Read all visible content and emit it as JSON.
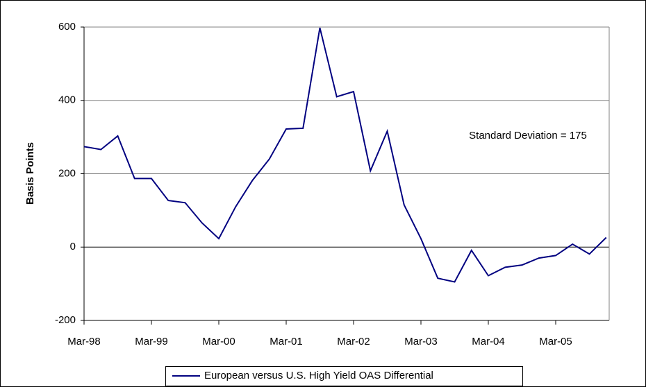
{
  "chart_data": {
    "type": "line",
    "y_label": "Basis Points",
    "annotation": "Standard Deviation = 175",
    "categories": [
      "Mar-98",
      null,
      null,
      null,
      "Mar-99",
      null,
      null,
      null,
      "Mar-00",
      null,
      null,
      null,
      "Mar-01",
      null,
      null,
      null,
      "Mar-02",
      null,
      null,
      null,
      "Mar-03",
      null,
      null,
      null,
      "Mar-04",
      null,
      null,
      null,
      "Mar-05",
      null,
      null,
      null
    ],
    "series": [
      {
        "name": "European versus U.S. High Yield OAS Differential",
        "color": "#000080",
        "values": [
          274,
          266,
          303,
          187,
          187,
          127,
          121,
          66,
          23,
          110,
          182,
          240,
          322,
          324,
          598,
          410,
          424,
          208,
          316,
          115,
          23,
          -85,
          -95,
          -9,
          -78,
          -55,
          -49,
          -30,
          -23,
          8,
          -19,
          26
        ]
      }
    ],
    "ylim": [
      -200,
      600
    ],
    "yticks": [
      -200,
      0,
      200,
      400,
      600
    ],
    "grid": true,
    "legend": "bottom"
  }
}
